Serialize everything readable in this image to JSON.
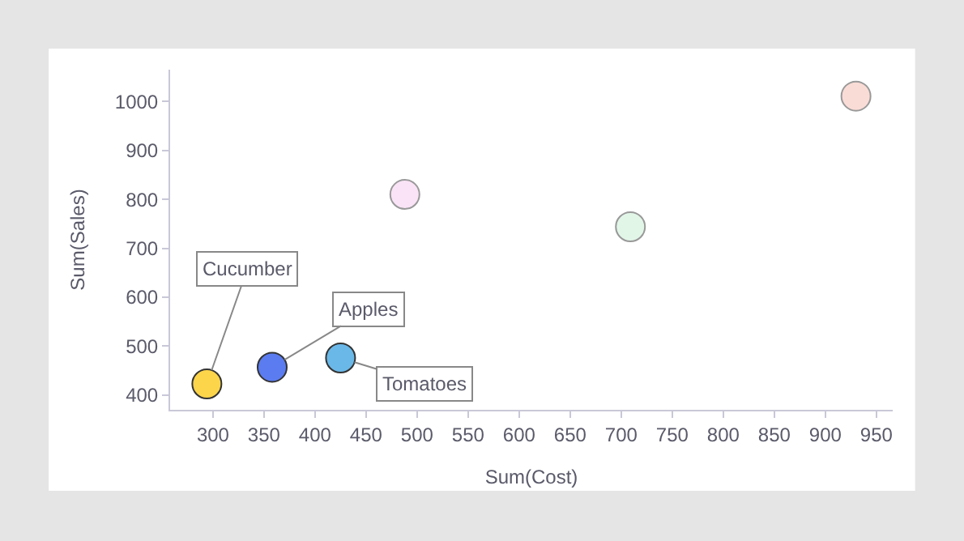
{
  "chart_data": {
    "type": "scatter",
    "xlabel": "Sum(Cost)",
    "ylabel": "Sum(Sales)",
    "x": [
      294,
      358,
      425,
      488,
      709,
      930
    ],
    "series": [
      {
        "values": [
          423,
          457,
          476,
          810,
          744,
          1011
        ],
        "colors": [
          "#fdd54a",
          "#5b7cf0",
          "#6ab8e8",
          "#fae3f6",
          "#e2f6e8",
          "#fadcd6"
        ]
      }
    ],
    "xlim": [
      258,
      966
    ],
    "xticks": [
      300,
      350,
      400,
      450,
      500,
      550,
      600,
      650,
      700,
      750,
      800,
      850,
      900,
      950
    ],
    "ylim": [
      370,
      1065
    ],
    "yticks": [
      400,
      500,
      600,
      700,
      800,
      900,
      1000
    ],
    "annotations": [
      {
        "text": "Cucumber",
        "x": 294,
        "y": 423
      },
      {
        "text": "Apples",
        "x": 358,
        "y": 457
      },
      {
        "text": "Tomatoes",
        "x": 425,
        "y": 476
      }
    ],
    "marker": "circle"
  }
}
